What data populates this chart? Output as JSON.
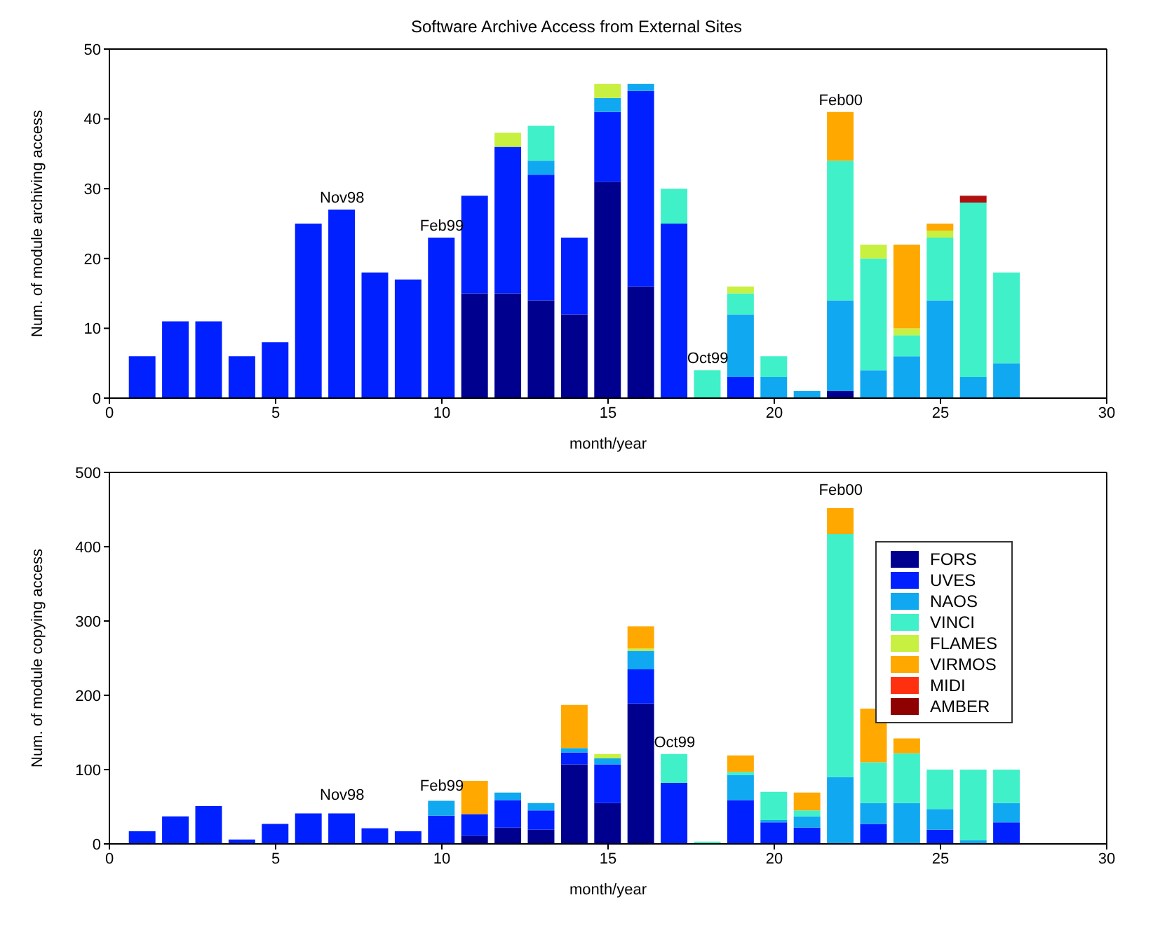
{
  "chart_data": [
    {
      "type": "bar",
      "title": "Software Archive Access from External Sites",
      "xlabel": "month/year",
      "ylabel": "Num. of module archiving access",
      "stacked": true,
      "legend": false,
      "grid": false,
      "x": [
        1,
        2,
        3,
        4,
        5,
        6,
        7,
        8,
        9,
        10,
        11,
        12,
        13,
        14,
        15,
        16,
        17,
        18,
        19,
        20,
        21,
        22,
        23,
        24,
        25,
        26,
        27
      ],
      "xlim": [
        0,
        30
      ],
      "xticks": [
        0,
        5,
        10,
        15,
        20,
        25,
        30
      ],
      "ylim": [
        0,
        50
      ],
      "yticks": [
        0,
        10,
        20,
        30,
        40,
        50
      ],
      "series": [
        {
          "color": "#00008f",
          "values": [
            null,
            null,
            null,
            null,
            null,
            null,
            null,
            null,
            null,
            null,
            15,
            15,
            14,
            12,
            31,
            16,
            null,
            null,
            null,
            null,
            null,
            1,
            null,
            null,
            null,
            null,
            null
          ]
        },
        {
          "color": "#0020ff",
          "values": [
            6,
            11,
            11,
            6,
            8,
            25,
            27,
            18,
            17,
            23,
            14,
            21,
            18,
            11,
            10,
            28,
            25,
            null,
            3,
            null,
            null,
            null,
            null,
            null,
            null,
            null,
            null
          ]
        },
        {
          "color": "#10a8f0",
          "values": [
            null,
            null,
            null,
            null,
            null,
            null,
            null,
            null,
            null,
            null,
            null,
            null,
            2,
            null,
            2,
            1,
            null,
            null,
            9,
            3,
            1,
            13,
            4,
            6,
            14,
            3,
            5
          ]
        },
        {
          "color": "#40f0c8",
          "values": [
            null,
            null,
            null,
            null,
            null,
            null,
            null,
            null,
            null,
            null,
            null,
            null,
            5,
            null,
            null,
            null,
            5,
            4,
            3,
            3,
            null,
            20,
            16,
            3,
            9,
            25,
            13
          ]
        },
        {
          "color": "#c8f040",
          "values": [
            null,
            null,
            null,
            null,
            null,
            null,
            null,
            null,
            null,
            null,
            null,
            2,
            null,
            null,
            2,
            null,
            null,
            null,
            1,
            null,
            null,
            null,
            2,
            1,
            1,
            null,
            null
          ]
        },
        {
          "color": "#ffa800",
          "values": [
            null,
            null,
            null,
            null,
            null,
            null,
            null,
            null,
            null,
            null,
            null,
            null,
            null,
            null,
            null,
            null,
            null,
            null,
            null,
            null,
            null,
            7,
            null,
            12,
            1,
            null,
            null
          ]
        },
        {
          "color": "#b01010",
          "values": [
            null,
            null,
            null,
            null,
            null,
            null,
            null,
            null,
            null,
            null,
            null,
            null,
            null,
            null,
            null,
            null,
            null,
            null,
            null,
            null,
            null,
            null,
            null,
            null,
            null,
            1,
            null
          ]
        }
      ],
      "annotations": [
        {
          "text": "Nov98",
          "x": 7,
          "y": 27
        },
        {
          "text": "Feb99",
          "x": 10,
          "y": 23
        },
        {
          "text": "Oct99",
          "x": 18,
          "y": 4
        },
        {
          "text": "Feb00",
          "x": 22,
          "y": 41
        }
      ]
    },
    {
      "type": "bar",
      "xlabel": "month/year",
      "ylabel": "Num. of module copying access",
      "stacked": true,
      "legend": "right",
      "grid": false,
      "x": [
        1,
        2,
        3,
        4,
        5,
        6,
        7,
        8,
        9,
        10,
        11,
        12,
        13,
        14,
        15,
        16,
        17,
        18,
        19,
        20,
        21,
        22,
        23,
        24,
        25,
        26,
        27
      ],
      "xlim": [
        0,
        30
      ],
      "xticks": [
        0,
        5,
        10,
        15,
        20,
        25,
        30
      ],
      "ylim": [
        0,
        500
      ],
      "yticks": [
        0,
        100,
        200,
        300,
        400,
        500
      ],
      "series": [
        {
          "name": "FORS",
          "color": "#00008f",
          "values": [
            null,
            null,
            null,
            null,
            null,
            null,
            null,
            null,
            null,
            null,
            11,
            22,
            19,
            107,
            55,
            189,
            null,
            null,
            null,
            null,
            null,
            null,
            null,
            null,
            null,
            null,
            null
          ]
        },
        {
          "name": "UVES",
          "color": "#0020ff",
          "values": [
            17,
            37,
            51,
            6,
            27,
            41,
            41,
            21,
            17,
            38,
            29,
            37,
            26,
            16,
            52,
            46,
            82,
            null,
            59,
            29,
            22,
            null,
            27,
            null,
            19,
            null,
            29
          ]
        },
        {
          "name": "NAOS",
          "color": "#10a8f0",
          "values": [
            null,
            null,
            null,
            null,
            null,
            null,
            null,
            null,
            null,
            20,
            null,
            10,
            10,
            6,
            8,
            25,
            null,
            null,
            34,
            3,
            15,
            90,
            28,
            55,
            28,
            5,
            26
          ]
        },
        {
          "name": "VINCI",
          "color": "#40f0c8",
          "values": [
            null,
            null,
            null,
            null,
            null,
            null,
            null,
            null,
            null,
            null,
            null,
            null,
            null,
            null,
            null,
            null,
            39,
            3,
            4,
            38,
            8,
            327,
            55,
            67,
            53,
            95,
            45
          ]
        },
        {
          "name": "FLAMES",
          "color": "#c8f040",
          "values": [
            null,
            null,
            null,
            null,
            null,
            null,
            null,
            null,
            null,
            null,
            null,
            null,
            null,
            null,
            6,
            3,
            null,
            null,
            null,
            null,
            null,
            null,
            null,
            null,
            null,
            null,
            null
          ]
        },
        {
          "name": "VIRMOS",
          "color": "#ffa800",
          "values": [
            null,
            null,
            null,
            null,
            null,
            null,
            null,
            null,
            null,
            null,
            45,
            null,
            null,
            58,
            null,
            30,
            null,
            null,
            22,
            null,
            24,
            35,
            72,
            20,
            null,
            null,
            null
          ]
        },
        {
          "name": "MIDI",
          "color": "#ff3010",
          "values": [
            null,
            null,
            null,
            null,
            null,
            null,
            null,
            null,
            null,
            null,
            null,
            null,
            null,
            null,
            null,
            null,
            null,
            null,
            null,
            null,
            null,
            null,
            null,
            null,
            null,
            null,
            null
          ]
        },
        {
          "name": "AMBER",
          "color": "#8f0000",
          "values": [
            null,
            null,
            null,
            null,
            null,
            null,
            null,
            null,
            null,
            null,
            null,
            null,
            null,
            null,
            null,
            null,
            null,
            null,
            null,
            null,
            null,
            null,
            null,
            null,
            null,
            null,
            null
          ]
        }
      ],
      "annotations": [
        {
          "text": "Nov98",
          "x": 7,
          "y": 50
        },
        {
          "text": "Feb99",
          "x": 10,
          "y": 62
        },
        {
          "text": "Oct99",
          "x": 17,
          "y": 121
        },
        {
          "text": "Feb00",
          "x": 22,
          "y": 460
        }
      ]
    }
  ]
}
